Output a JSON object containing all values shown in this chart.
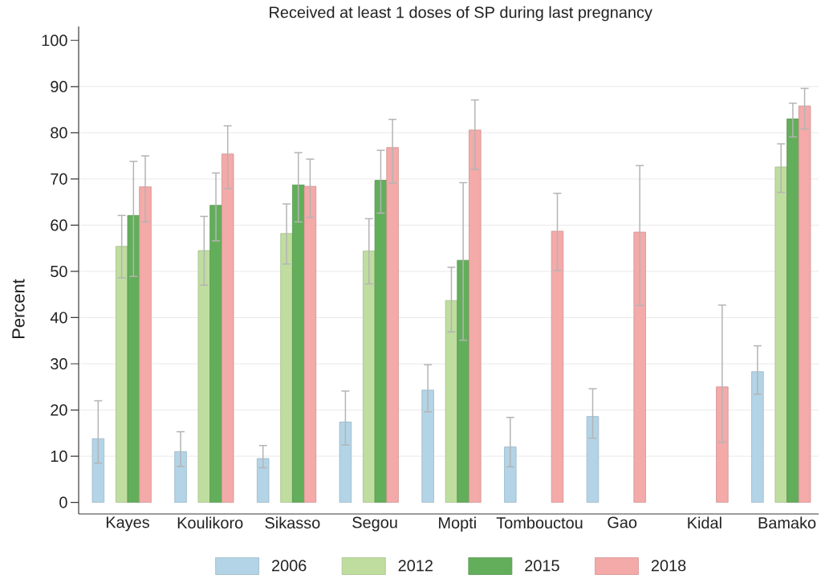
{
  "chart_data": {
    "type": "bar",
    "title": "Received at least 1 doses of SP during last pregnancy",
    "ylabel": "Percent",
    "categories": [
      "Kayes",
      "Koulikoro",
      "Sikasso",
      "Segou",
      "Mopti",
      "Tombouctou",
      "Gao",
      "Kidal",
      "Bamako"
    ],
    "series": [
      {
        "name": "2006",
        "color": "#b3d4e6",
        "values": [
          13.8,
          11.0,
          9.5,
          17.4,
          24.3,
          12.0,
          18.6,
          null,
          28.3
        ],
        "errors": [
          [
            8.5,
            22.0
          ],
          [
            7.8,
            15.3
          ],
          [
            7.5,
            12.3
          ],
          [
            12.4,
            24.1
          ],
          [
            19.6,
            29.8
          ],
          [
            7.7,
            18.4
          ],
          [
            13.9,
            24.6
          ],
          null,
          [
            23.4,
            33.9
          ]
        ]
      },
      {
        "name": "2012",
        "color": "#bfdd9f",
        "values": [
          55.4,
          54.5,
          58.2,
          54.4,
          43.7,
          null,
          null,
          null,
          72.6
        ],
        "errors": [
          [
            48.6,
            62.1
          ],
          [
            47.0,
            61.9
          ],
          [
            51.6,
            64.6
          ],
          [
            47.3,
            61.4
          ],
          [
            36.9,
            50.9
          ],
          null,
          null,
          null,
          [
            67.1,
            77.6
          ]
        ]
      },
      {
        "name": "2015",
        "color": "#63ae5b",
        "values": [
          62.1,
          64.3,
          68.7,
          69.7,
          52.4,
          null,
          null,
          null,
          83.0
        ],
        "errors": [
          [
            48.9,
            73.8
          ],
          [
            56.6,
            71.3
          ],
          [
            60.7,
            75.7
          ],
          [
            62.6,
            76.2
          ],
          [
            35.1,
            69.2
          ],
          null,
          null,
          null,
          [
            79.1,
            86.4
          ]
        ]
      },
      {
        "name": "2018",
        "color": "#f3aaa9",
        "values": [
          68.3,
          75.4,
          68.4,
          76.8,
          80.6,
          58.7,
          58.5,
          25.0,
          85.8
        ],
        "errors": [
          [
            60.7,
            75.0
          ],
          [
            67.9,
            81.5
          ],
          [
            61.7,
            74.3
          ],
          [
            69.1,
            82.9
          ],
          [
            72.1,
            87.1
          ],
          [
            50.2,
            66.9
          ],
          [
            42.6,
            72.9
          ],
          [
            13.0,
            42.7
          ],
          [
            80.8,
            89.6
          ]
        ]
      }
    ],
    "ylim": [
      -2.5,
      103
    ],
    "yticks": [
      0,
      10,
      20,
      30,
      40,
      50,
      60,
      70,
      80,
      90,
      100
    ],
    "grid": "y",
    "legend": "bottom"
  }
}
